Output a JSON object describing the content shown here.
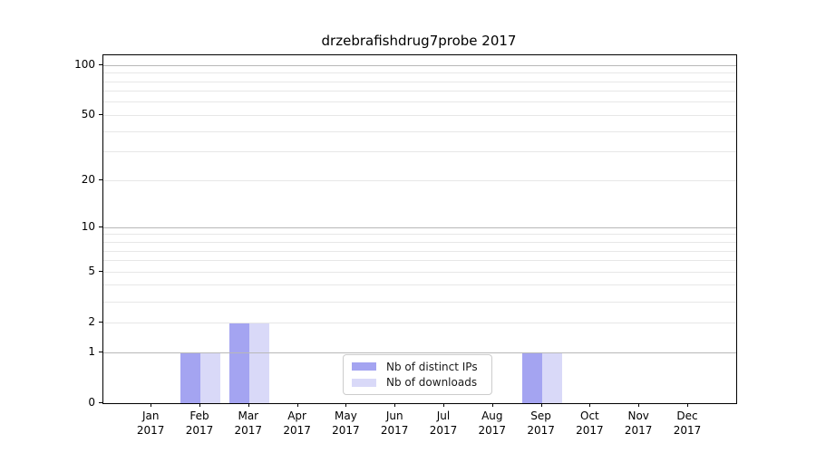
{
  "chart_data": {
    "type": "bar",
    "title": "drzebrafishdrug7probe 2017",
    "categories": [
      "Jan",
      "Feb",
      "Mar",
      "Apr",
      "May",
      "Jun",
      "Jul",
      "Aug",
      "Sep",
      "Oct",
      "Nov",
      "Dec"
    ],
    "year_label": "2017",
    "series": [
      {
        "name": "Nb of distinct IPs",
        "color": "#a4a4f1",
        "values": [
          0,
          1,
          2,
          0,
          0,
          0,
          0,
          0,
          1,
          0,
          0,
          0
        ]
      },
      {
        "name": "Nb of downloads",
        "color": "#d9d9f8",
        "values": [
          0,
          1,
          2,
          0,
          0,
          0,
          0,
          0,
          1,
          0,
          0,
          0
        ]
      }
    ],
    "y_axis": {
      "scale": "log1p",
      "ylim": [
        0,
        115
      ],
      "major_ticks": [
        0,
        1,
        2,
        5,
        10,
        20,
        50,
        100
      ],
      "decade_gridlines": [
        1,
        10,
        100
      ],
      "minor_gridlines": [
        3,
        4,
        6,
        7,
        8,
        9,
        30,
        40,
        60,
        70,
        80,
        90
      ]
    },
    "legend": {
      "position": "lower center"
    },
    "grid": true,
    "colors": {
      "decade_grid": "#b8b8b8",
      "minor_grid": "#e7e7e7",
      "axis": "#000000",
      "text": "#000000",
      "legend_border": "#cccccc",
      "background": "#ffffff"
    }
  }
}
